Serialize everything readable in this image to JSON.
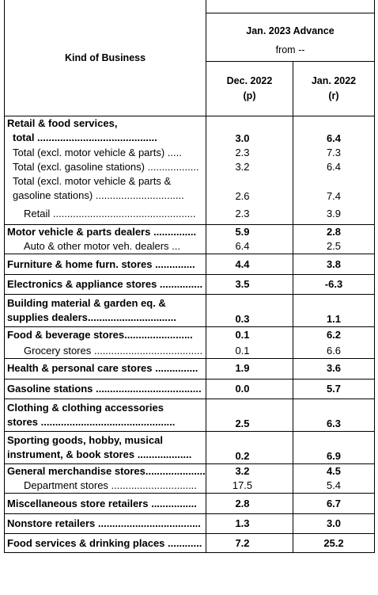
{
  "header": {
    "kind_of_business": "Kind of Business",
    "group_title": "Jan. 2023 Advance",
    "group_sub": "from --",
    "col1_line1": "Dec. 2022",
    "col1_line2": "(p)",
    "col2_line1": "Jan. 2022",
    "col2_line2": "(r)"
  },
  "rows": [
    {
      "line1": "Retail & food services,",
      "line2": "total ..........................................",
      "v1": "3.0",
      "v2": "6.4",
      "bold": true,
      "indent": 0,
      "group_first": true
    },
    {
      "line1": "Total (excl. motor vehicle & parts) .....",
      "v1": "2.3",
      "v2": "7.3",
      "bold": false,
      "indent": 1
    },
    {
      "line1": "Total (excl. gasoline stations) ..................",
      "v1": "3.2",
      "v2": "6.4",
      "bold": false,
      "indent": 1
    },
    {
      "line1": "Total (excl. motor vehicle & parts &",
      "line2": "gasoline stations) ...............................",
      "v1": "2.6",
      "v2": "7.4",
      "bold": false,
      "indent": 1
    },
    {
      "line1": "Retail ..................................................",
      "v1": "2.3",
      "v2": "3.9",
      "bold": false,
      "indent": 2
    },
    {
      "line1": "Motor vehicle & parts dealers ...............",
      "v1": "5.9",
      "v2": "2.8",
      "bold": true,
      "indent": 0,
      "group_first": true
    },
    {
      "line1": "Auto & other motor veh. dealers ...",
      "v1": "6.4",
      "v2": "2.5",
      "bold": false,
      "indent": 2
    },
    {
      "line1": "Furniture & home furn. stores ..............",
      "v1": "4.4",
      "v2": "3.8",
      "bold": true,
      "indent": 0,
      "group_first": true
    },
    {
      "line1": "Electronics & appliance stores ...............",
      "v1": "3.5",
      "v2": "-6.3",
      "bold": true,
      "indent": 0,
      "group_first": true
    },
    {
      "line1": "Building material & garden eq. &",
      "line2": "supplies dealers...............................",
      "v1": "0.3",
      "v2": "1.1",
      "bold": true,
      "indent": 0,
      "group_first": true
    },
    {
      "line1": "Food & beverage stores........................",
      "v1": "0.1",
      "v2": "6.2",
      "bold": true,
      "indent": 0,
      "group_first": true
    },
    {
      "line1": "Grocery stores ......................................",
      "v1": "0.1",
      "v2": "6.6",
      "bold": false,
      "indent": 2
    },
    {
      "line1": "Health & personal care stores ...............",
      "v1": "1.9",
      "v2": "3.6",
      "bold": true,
      "indent": 0,
      "group_first": true
    },
    {
      "line1": "Gasoline stations .....................................",
      "v1": "0.0",
      "v2": "5.7",
      "bold": true,
      "indent": 0,
      "group_first": true
    },
    {
      "line1": "Clothing & clothing accessories",
      "line2": "stores ...............................................",
      "v1": "2.5",
      "v2": "6.3",
      "bold": true,
      "indent": 0,
      "group_first": true
    },
    {
      "line1": "Sporting goods, hobby, musical",
      "line2": "instrument, & book stores ...................",
      "v1": "0.2",
      "v2": "6.9",
      "bold": true,
      "indent": 0,
      "group_first": true
    },
    {
      "line1": "General merchandise stores......................",
      "v1": "3.2",
      "v2": "4.5",
      "bold": true,
      "indent": 0,
      "group_first": true
    },
    {
      "line1": "Department stores ..............................",
      "v1": "17.5",
      "v2": "5.4",
      "bold": false,
      "indent": 2
    },
    {
      "line1": "Miscellaneous store retailers ................",
      "v1": "2.8",
      "v2": "6.7",
      "bold": true,
      "indent": 0,
      "group_first": true
    },
    {
      "line1": "Nonstore retailers ....................................",
      "v1": "1.3",
      "v2": "3.0",
      "bold": true,
      "indent": 0,
      "group_first": true
    },
    {
      "line1": "Food services & drinking places ............",
      "v1": "7.2",
      "v2": "25.2",
      "bold": true,
      "indent": 0,
      "group_first": true,
      "last": true
    }
  ]
}
